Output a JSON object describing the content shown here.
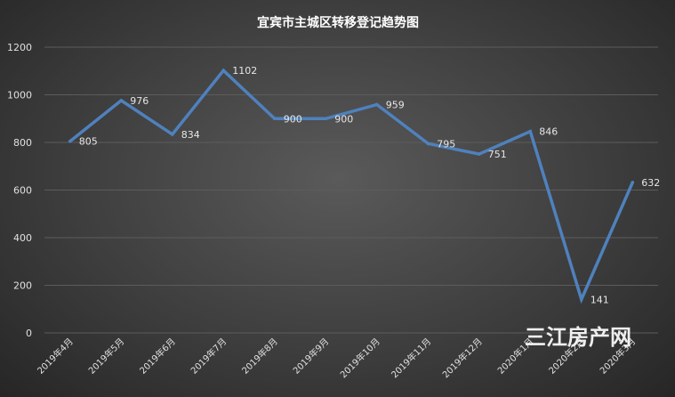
{
  "watermark": "三江房产网",
  "chart_data": {
    "type": "line",
    "title": "宜宾市主城区转移登记趋势图",
    "xlabel": "",
    "ylabel": "",
    "categories": [
      "2019年4月",
      "2019年5月",
      "2019年6月",
      "2019年7月",
      "2019年8月",
      "2019年9月",
      "2019年10月",
      "2019年11月",
      "2019年12月",
      "2020年1月",
      "2020年2月",
      "2020年3月"
    ],
    "series": [
      {
        "values": [
          805,
          976,
          834,
          1102,
          900,
          900,
          959,
          795,
          751,
          846,
          141,
          632
        ],
        "color": "#4f81bd"
      }
    ],
    "ylim": [
      0,
      1200
    ],
    "yticks": [
      0,
      200,
      400,
      600,
      800,
      1000,
      1200
    ],
    "grid": true,
    "legend": "none",
    "data_labels": true
  }
}
